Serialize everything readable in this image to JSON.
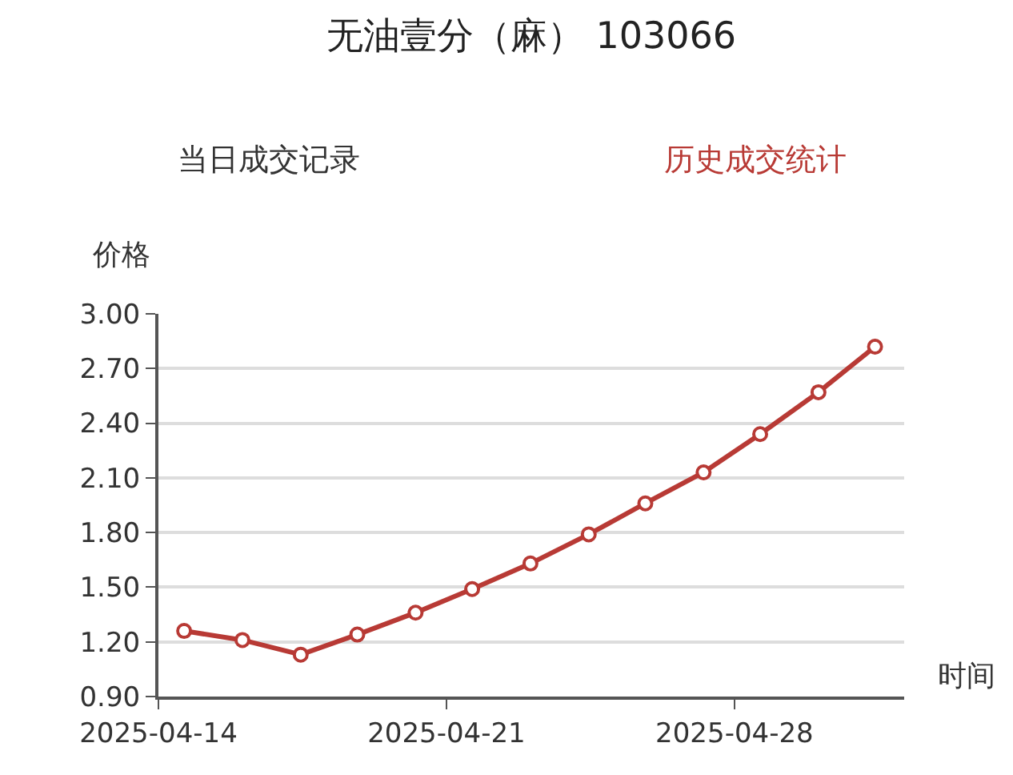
{
  "chart_data": {
    "type": "line",
    "title": "无油壹分（麻） 103066",
    "annotations": [
      "当日成交记录",
      "历史成交统计"
    ],
    "xlabel": "时间",
    "ylabel": "价格",
    "x": [
      "2025-04-14T15:00",
      "2025-04-16T01:00",
      "2025-04-17T11:00",
      "2025-04-18T20:00",
      "2025-04-20T06:00",
      "2025-04-21T15:00",
      "2025-04-23T01:00",
      "2025-04-24T11:00",
      "2025-04-25T20:00",
      "2025-04-27T06:00",
      "2025-04-28T15:00",
      "2025-04-30T01:00",
      "2025-05-01T10:00"
    ],
    "series": [
      {
        "color": "#b83a35",
        "values": [
          1.26,
          1.21,
          1.13,
          1.24,
          1.36,
          1.49,
          1.63,
          1.79,
          1.96,
          2.13,
          2.34,
          2.57,
          2.82
        ]
      }
    ],
    "xlim": [
      "2025-04-14",
      "2025-05-02T03:00"
    ],
    "xticks": [
      {
        "value": "2025-04-14",
        "label": "2025-04-14"
      },
      {
        "value": "2025-04-21",
        "label": "2025-04-21"
      },
      {
        "value": "2025-04-28",
        "label": "2025-04-28"
      }
    ],
    "ylim": [
      0.9,
      3.0
    ],
    "yticks": [
      {
        "value": 0.9,
        "label": "0.90"
      },
      {
        "value": 1.2,
        "label": "1.20"
      },
      {
        "value": 1.5,
        "label": "1.50"
      },
      {
        "value": 1.8,
        "label": "1.80"
      },
      {
        "value": 2.1,
        "label": "2.10"
      },
      {
        "value": 2.4,
        "label": "2.40"
      },
      {
        "value": 2.7,
        "label": "2.70"
      },
      {
        "value": 3.0,
        "label": "3.00"
      }
    ],
    "grid": "y",
    "marker": "circle",
    "line_style": "solid"
  }
}
